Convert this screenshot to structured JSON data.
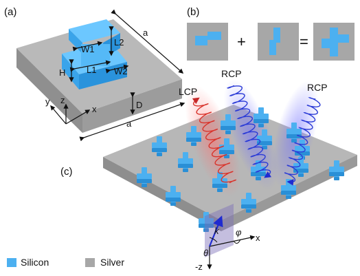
{
  "panels": {
    "a": "(a)",
    "b": "(b)",
    "c": "(c)"
  },
  "dims": {
    "a_top": "a",
    "a_bottom": "a",
    "L1": "L1",
    "L2": "L2",
    "W1": "W1",
    "W2": "W2",
    "H": "H",
    "D": "D"
  },
  "axes_a": {
    "x": "x",
    "y": "y",
    "z": "z"
  },
  "operators": {
    "plus": "+",
    "equals": "="
  },
  "beams": {
    "lcp": "LCP",
    "rcp1": "RCP",
    "rcp2": "RCP"
  },
  "axes_c": {
    "x": "x",
    "minus_z": "-z",
    "theta": "θ",
    "phi": "φ",
    "k": "k"
  },
  "legend": [
    {
      "label": "Silicon",
      "color": "#4cb0f0"
    },
    {
      "label": "Silver",
      "color": "#a7a7a7"
    }
  ],
  "colors": {
    "silicon": "#4cb0f0",
    "silver": "#a7a7a7",
    "lcp": "#d8342c",
    "rcp": "#2b3bd6"
  }
}
